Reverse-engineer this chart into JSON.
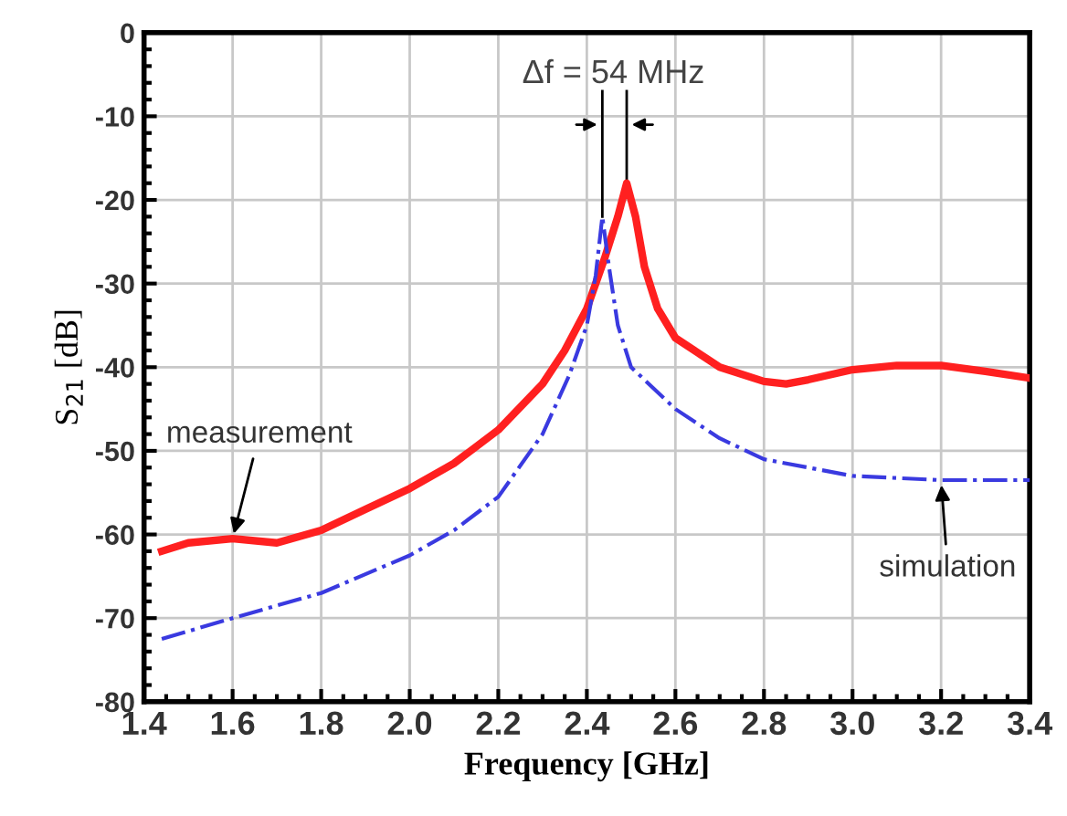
{
  "chart_data": {
    "type": "line",
    "xlabel": "Frequency [GHz]",
    "ylabel": "S$_{21}$ [dB]",
    "xlim": [
      1.4,
      3.4
    ],
    "xticks": [
      1.4,
      1.6,
      1.8,
      {
        "value": 2,
        "label": "2.0"
      },
      2.2,
      2.4,
      2.6,
      2.8,
      {
        "value": 3,
        "label": "3.0"
      },
      3.2,
      3.4
    ],
    "ylim": [
      -80,
      0
    ],
    "yticks": [
      -80,
      -70,
      -60,
      -50,
      -40,
      -30,
      -20,
      -10,
      0
    ],
    "grid": true,
    "series": [
      {
        "name": "measurement",
        "color": "#ff2020",
        "line_style": "solid",
        "x": [
          1.44,
          1.5,
          1.6,
          1.7,
          1.8,
          1.9,
          2.0,
          2.1,
          2.2,
          2.3,
          2.35,
          2.4,
          2.44,
          2.47,
          2.49,
          2.51,
          2.53,
          2.56,
          2.6,
          2.7,
          2.8,
          2.85,
          2.9,
          3.0,
          3.1,
          3.2,
          3.3,
          3.4
        ],
        "values": [
          -62,
          -61,
          -60.5,
          -61,
          -59.5,
          -57,
          -54.5,
          -51.5,
          -47.5,
          -42,
          -38,
          -33,
          -27,
          -22,
          -18,
          -22,
          -28,
          -33,
          -36.5,
          -40,
          -41.7,
          -42,
          -41.5,
          -40.3,
          -39.8,
          -39.8,
          -40.5,
          -41.3
        ]
      },
      {
        "name": "simulation",
        "color": "#3a3ae0",
        "line_style": "dashdot",
        "x": [
          1.44,
          1.6,
          1.8,
          2.0,
          2.1,
          2.2,
          2.3,
          2.36,
          2.4,
          2.42,
          2.435,
          2.45,
          2.47,
          2.5,
          2.6,
          2.7,
          2.8,
          3.0,
          3.2,
          3.4
        ],
        "values": [
          -72.5,
          -70,
          -67,
          -62.5,
          -59.5,
          -55.5,
          -48,
          -41,
          -35,
          -29,
          -22,
          -28,
          -35,
          -40,
          -45,
          -48.5,
          -51,
          -53,
          -53.5,
          -53.5
        ]
      }
    ],
    "annotations": [
      {
        "text": "Δf = 54 MHz",
        "x": 2.49,
        "y": -18
      }
    ]
  }
}
